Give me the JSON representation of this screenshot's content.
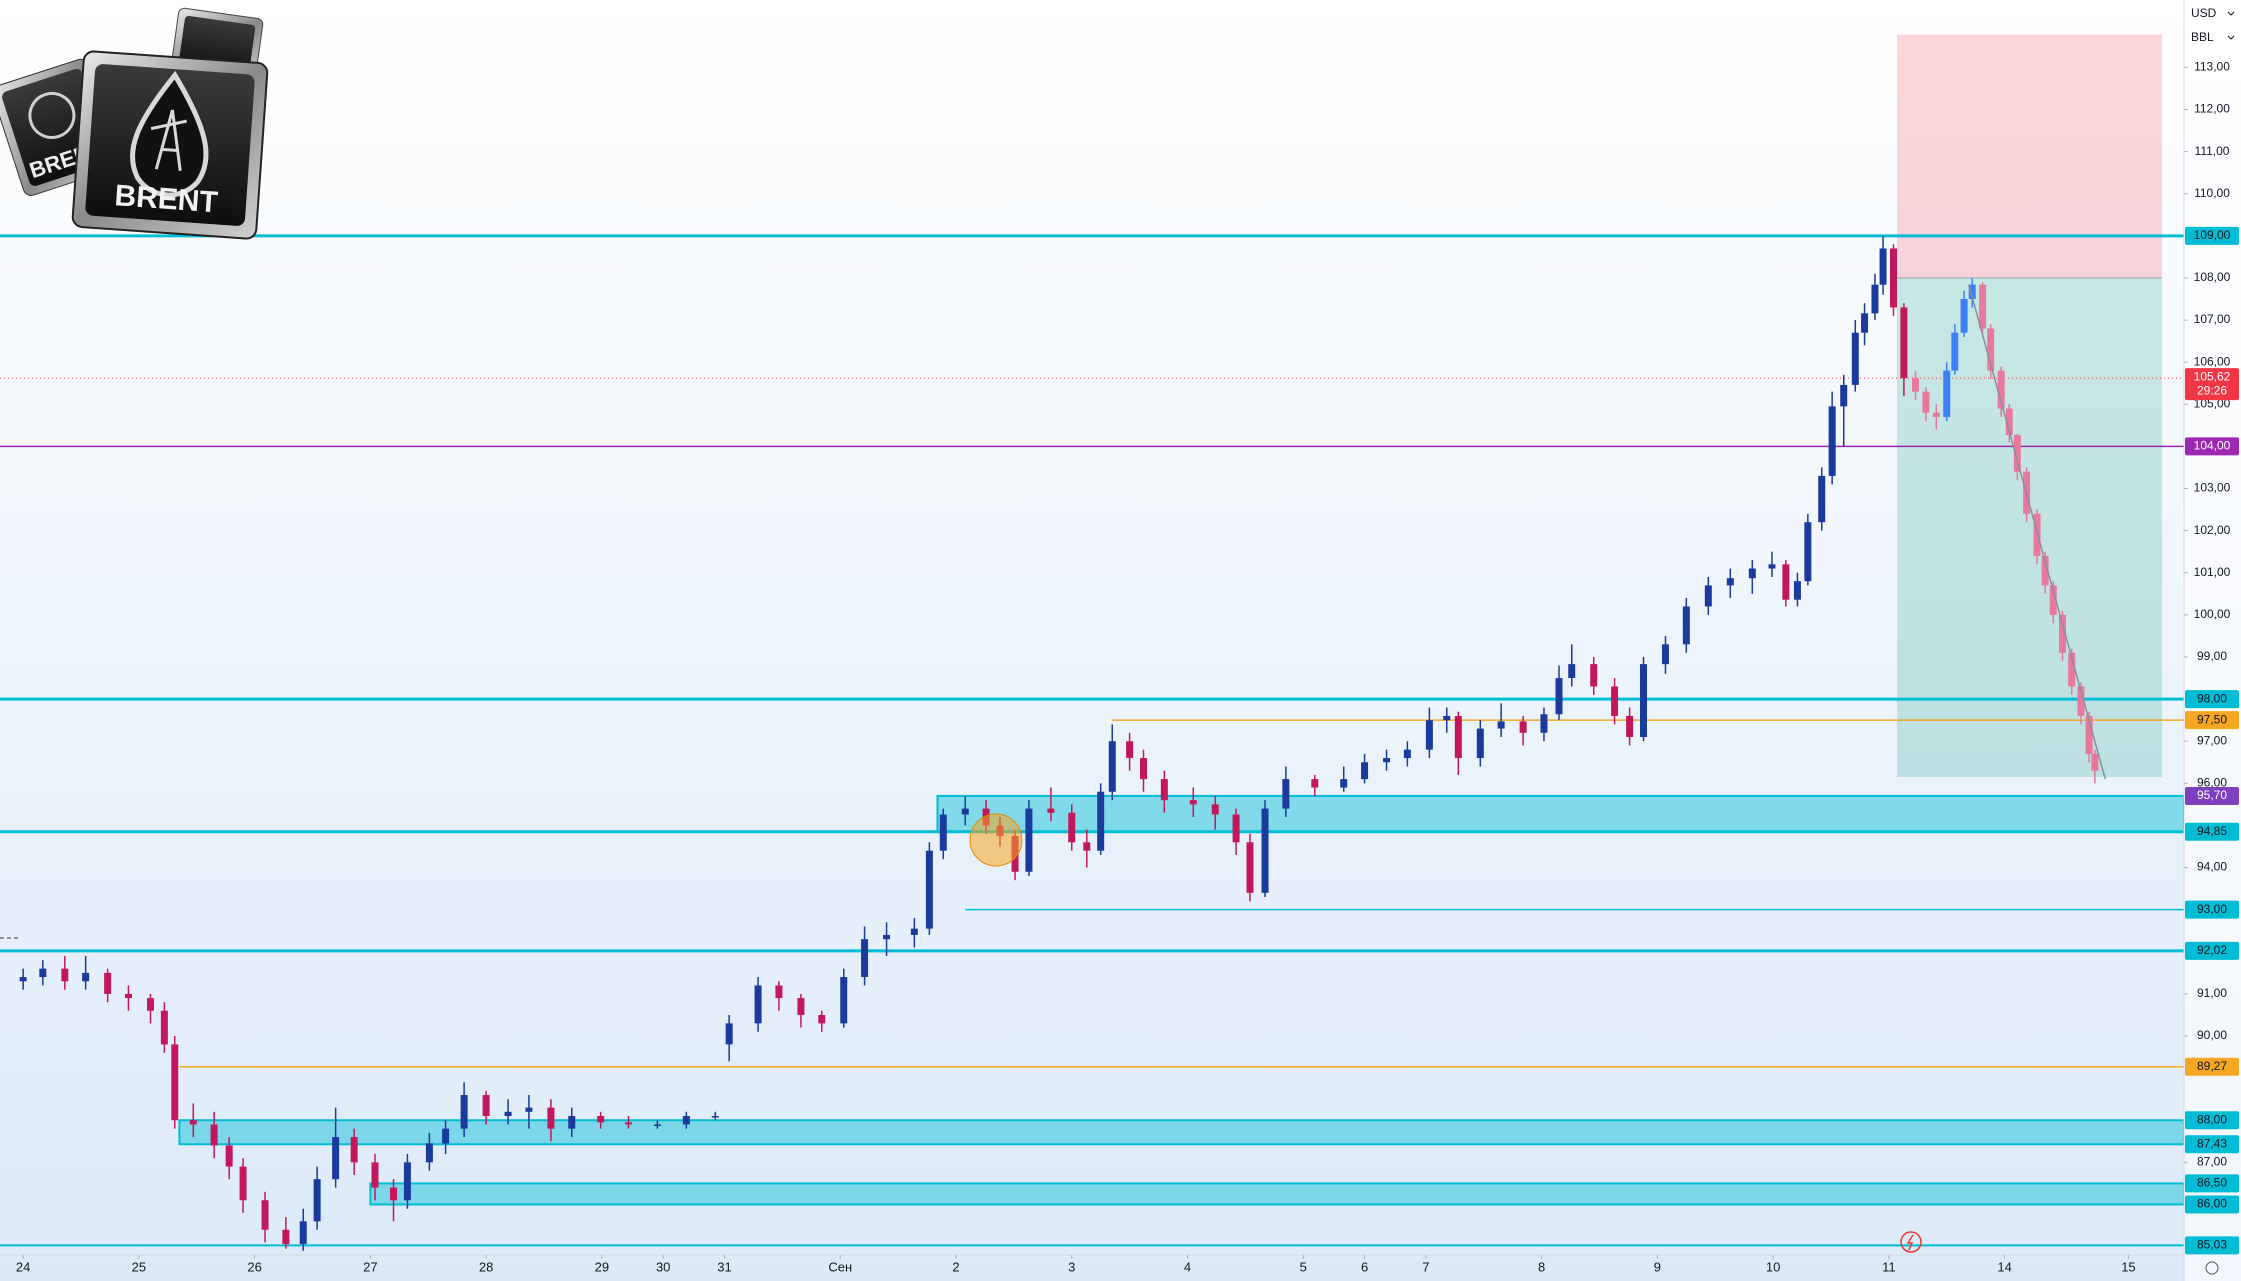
{
  "chart_data": {
    "type": "candlestick",
    "currency": "USD",
    "unit": "BBL",
    "logo_text": "BRENT",
    "xlim": [
      -0.2,
      18.67
    ],
    "ylim": [
      84.8,
      114.6
    ],
    "xticks": [
      {
        "value": 0,
        "label": "24"
      },
      {
        "value": 1,
        "label": "25"
      },
      {
        "value": 2,
        "label": "26"
      },
      {
        "value": 3,
        "label": "27"
      },
      {
        "value": 4,
        "label": "28"
      },
      {
        "value": 5,
        "label": "29"
      },
      {
        "value": 5.53,
        "label": "30"
      },
      {
        "value": 6.06,
        "label": "31"
      },
      {
        "value": 7.06,
        "label": "Сен"
      },
      {
        "value": 8.06,
        "label": "2"
      },
      {
        "value": 9.06,
        "label": "3"
      },
      {
        "value": 10.06,
        "label": "4"
      },
      {
        "value": 11.06,
        "label": "5"
      },
      {
        "value": 11.59,
        "label": "6"
      },
      {
        "value": 12.12,
        "label": "7"
      },
      {
        "value": 13.12,
        "label": "8"
      },
      {
        "value": 14.12,
        "label": "9"
      },
      {
        "value": 15.12,
        "label": "10"
      },
      {
        "value": 16.12,
        "label": "11"
      },
      {
        "value": 17.12,
        "label": "14"
      },
      {
        "value": 18.19,
        "label": "15"
      }
    ],
    "yticks": [
      {
        "value": 113,
        "label": "113,00"
      },
      {
        "value": 112,
        "label": "112,00"
      },
      {
        "value": 111,
        "label": "111,00"
      },
      {
        "value": 110,
        "label": "110,00"
      },
      {
        "value": 108,
        "label": "108,00"
      },
      {
        "value": 107,
        "label": "107,00"
      },
      {
        "value": 106,
        "label": "106,00"
      },
      {
        "value": 105,
        "label": "105,00"
      },
      {
        "value": 103,
        "label": "103,00"
      },
      {
        "value": 102,
        "label": "102,00"
      },
      {
        "value": 101,
        "label": "101,00"
      },
      {
        "value": 100,
        "label": "100,00"
      },
      {
        "value": 99,
        "label": "99,00"
      },
      {
        "value": 97,
        "label": "97,00"
      },
      {
        "value": 96,
        "label": "96,00"
      },
      {
        "value": 94,
        "label": "94,00"
      },
      {
        "value": 91,
        "label": "91,00"
      },
      {
        "value": 90,
        "label": "90,00"
      },
      {
        "value": 87,
        "label": "87,00"
      }
    ],
    "up_color": "#1a3a9c",
    "down_color": "#c2185b",
    "projection_up_color": "#3d7ff5",
    "projection_down_color": "#e8789e",
    "candles": {
      "x": [
        0,
        0.17,
        0.36,
        0.54,
        0.73,
        0.91,
        1.1,
        1.22,
        1.31,
        1.47,
        1.65,
        1.78,
        1.9,
        2.09,
        2.27,
        2.42,
        2.54,
        2.7,
        2.86,
        3.04,
        3.2,
        3.32,
        3.51,
        3.65,
        3.81,
        4.0,
        4.19,
        4.37,
        4.56,
        4.74,
        4.99,
        5.23,
        5.48,
        5.73,
        5.98,
        6.1,
        6.35,
        6.53,
        6.72,
        6.9,
        7.09,
        7.27,
        7.46,
        7.7,
        7.83,
        7.95,
        8.14,
        8.32,
        8.44,
        8.57,
        8.69,
        8.88,
        9.06,
        9.19,
        9.31,
        9.41,
        9.56,
        9.68,
        9.86,
        10.11,
        10.3,
        10.48,
        10.6,
        10.73,
        10.91,
        11.16,
        11.41,
        11.59,
        11.78,
        11.96,
        12.15,
        12.3,
        12.4,
        12.59,
        12.77,
        12.96,
        13.14,
        13.27,
        13.38,
        13.57,
        13.75,
        13.88,
        14.0,
        14.19,
        14.37,
        14.56,
        14.75,
        14.94,
        15.11,
        15.23,
        15.33,
        15.42,
        15.54,
        15.63,
        15.73,
        15.83,
        15.91,
        16.0,
        16.07,
        16.16,
        16.25
      ],
      "ohlc": [
        [
          91.3,
          91.6,
          91.1,
          91.4
        ],
        [
          91.4,
          91.8,
          91.2,
          91.6
        ],
        [
          91.6,
          91.9,
          91.1,
          91.3
        ],
        [
          91.3,
          91.9,
          91.1,
          91.5
        ],
        [
          91.5,
          91.6,
          90.8,
          91.0
        ],
        [
          91.0,
          91.2,
          90.6,
          90.9
        ],
        [
          90.9,
          91.0,
          90.3,
          90.6
        ],
        [
          90.6,
          90.8,
          89.6,
          89.8
        ],
        [
          89.8,
          90.0,
          87.8,
          88.0
        ],
        [
          88.0,
          88.4,
          87.6,
          87.9
        ],
        [
          87.9,
          88.2,
          87.1,
          87.4
        ],
        [
          87.4,
          87.6,
          86.6,
          86.9
        ],
        [
          86.9,
          87.1,
          85.8,
          86.1
        ],
        [
          86.1,
          86.3,
          85.1,
          85.4
        ],
        [
          85.4,
          85.7,
          84.95,
          85.06
        ],
        [
          85.06,
          85.9,
          84.9,
          85.6
        ],
        [
          85.6,
          86.9,
          85.4,
          86.6
        ],
        [
          86.6,
          88.3,
          86.4,
          87.6
        ],
        [
          87.6,
          87.8,
          86.7,
          87.0
        ],
        [
          87.0,
          87.2,
          86.1,
          86.4
        ],
        [
          86.4,
          86.6,
          85.6,
          86.1
        ],
        [
          86.1,
          87.2,
          85.9,
          87.0
        ],
        [
          87.0,
          87.7,
          86.8,
          87.45
        ],
        [
          87.45,
          88.0,
          87.2,
          87.8
        ],
        [
          87.8,
          88.9,
          87.6,
          88.6
        ],
        [
          88.6,
          88.7,
          87.9,
          88.1
        ],
        [
          88.1,
          88.5,
          87.9,
          88.2
        ],
        [
          88.2,
          88.6,
          87.8,
          88.3
        ],
        [
          88.3,
          88.5,
          87.5,
          87.8
        ],
        [
          87.8,
          88.3,
          87.6,
          88.1
        ],
        [
          88.1,
          88.2,
          87.8,
          87.95
        ],
        [
          87.95,
          88.1,
          87.8,
          87.9
        ],
        [
          87.9,
          88.0,
          87.8,
          87.9
        ],
        [
          87.9,
          88.2,
          87.8,
          88.1
        ],
        [
          88.1,
          88.2,
          88.0,
          88.1
        ],
        [
          89.8,
          90.5,
          89.4,
          90.3
        ],
        [
          90.3,
          91.4,
          90.1,
          91.2
        ],
        [
          91.2,
          91.3,
          90.6,
          90.9
        ],
        [
          90.9,
          91.0,
          90.2,
          90.5
        ],
        [
          90.5,
          90.6,
          90.1,
          90.3
        ],
        [
          90.3,
          91.6,
          90.2,
          91.4
        ],
        [
          91.4,
          92.6,
          91.2,
          92.3
        ],
        [
          92.3,
          92.7,
          91.9,
          92.4
        ],
        [
          92.4,
          92.8,
          92.1,
          92.55
        ],
        [
          92.55,
          94.6,
          92.4,
          94.4
        ],
        [
          94.4,
          95.4,
          94.2,
          95.26
        ],
        [
          95.26,
          95.7,
          95.0,
          95.4
        ],
        [
          95.4,
          95.6,
          94.8,
          95.0
        ],
        [
          95.0,
          95.2,
          94.5,
          94.75
        ],
        [
          94.75,
          94.9,
          93.7,
          93.9
        ],
        [
          93.9,
          95.6,
          93.8,
          95.4
        ],
        [
          95.4,
          95.9,
          95.1,
          95.3
        ],
        [
          95.3,
          95.5,
          94.4,
          94.6
        ],
        [
          94.6,
          94.9,
          94.0,
          94.4
        ],
        [
          94.4,
          96.0,
          94.3,
          95.8
        ],
        [
          95.8,
          97.4,
          95.6,
          97.0
        ],
        [
          97.0,
          97.2,
          96.3,
          96.6
        ],
        [
          96.6,
          96.8,
          95.8,
          96.1
        ],
        [
          96.1,
          96.3,
          95.3,
          95.6
        ],
        [
          95.6,
          95.9,
          95.2,
          95.5
        ],
        [
          95.5,
          95.7,
          94.9,
          95.26
        ],
        [
          95.26,
          95.4,
          94.3,
          94.6
        ],
        [
          94.6,
          94.8,
          93.2,
          93.4
        ],
        [
          93.4,
          95.6,
          93.3,
          95.4
        ],
        [
          95.4,
          96.4,
          95.2,
          96.1
        ],
        [
          96.1,
          96.2,
          95.7,
          95.9
        ],
        [
          95.9,
          96.4,
          95.8,
          96.1
        ],
        [
          96.1,
          96.7,
          96.0,
          96.5
        ],
        [
          96.5,
          96.8,
          96.3,
          96.6
        ],
        [
          96.6,
          97.0,
          96.4,
          96.8
        ],
        [
          96.8,
          97.8,
          96.6,
          97.5
        ],
        [
          97.5,
          97.8,
          97.2,
          97.6
        ],
        [
          97.6,
          97.7,
          96.2,
          96.6
        ],
        [
          96.6,
          97.5,
          96.4,
          97.3
        ],
        [
          97.3,
          97.9,
          97.1,
          97.47
        ],
        [
          97.47,
          97.6,
          96.9,
          97.2
        ],
        [
          97.2,
          97.8,
          97.0,
          97.64
        ],
        [
          97.64,
          98.8,
          97.5,
          98.5
        ],
        [
          98.5,
          99.3,
          98.3,
          98.83
        ],
        [
          98.83,
          99.0,
          98.1,
          98.3
        ],
        [
          98.3,
          98.5,
          97.4,
          97.6
        ],
        [
          97.6,
          97.8,
          96.9,
          97.1
        ],
        [
          97.1,
          99.0,
          97.0,
          98.83
        ],
        [
          98.83,
          99.5,
          98.6,
          99.3
        ],
        [
          99.3,
          100.4,
          99.1,
          100.2
        ],
        [
          100.2,
          100.9,
          100.0,
          100.7
        ],
        [
          100.7,
          101.1,
          100.4,
          100.87
        ],
        [
          100.87,
          101.3,
          100.5,
          101.1
        ],
        [
          101.1,
          101.5,
          100.9,
          101.2
        ],
        [
          101.2,
          101.3,
          100.2,
          100.36
        ],
        [
          100.36,
          101.0,
          100.2,
          100.8
        ],
        [
          100.8,
          102.4,
          100.7,
          102.2
        ],
        [
          102.2,
          103.5,
          102.0,
          103.3
        ],
        [
          103.3,
          105.3,
          103.1,
          104.95
        ],
        [
          104.95,
          105.7,
          104.0,
          105.46
        ],
        [
          105.46,
          107.0,
          105.3,
          106.7
        ],
        [
          106.7,
          107.4,
          106.4,
          107.16
        ],
        [
          107.16,
          108.1,
          107.0,
          107.84
        ],
        [
          107.84,
          109.0,
          107.6,
          108.7
        ],
        [
          108.7,
          108.8,
          107.1,
          107.3
        ],
        [
          107.3,
          107.4,
          105.2,
          105.62
        ]
      ]
    },
    "projection": {
      "x": [
        16.35,
        16.44,
        16.53,
        16.62,
        16.69,
        16.77,
        16.84,
        16.93,
        17.0,
        17.09,
        17.16,
        17.23,
        17.31,
        17.4,
        17.47,
        17.54,
        17.62,
        17.7,
        17.78,
        17.85,
        17.9
      ],
      "ohlc": [
        [
          105.62,
          105.8,
          105.1,
          105.3
        ],
        [
          105.3,
          105.4,
          104.6,
          104.8
        ],
        [
          104.8,
          105.0,
          104.4,
          104.7
        ],
        [
          104.7,
          106.0,
          104.6,
          105.8
        ],
        [
          105.8,
          106.9,
          105.7,
          106.7
        ],
        [
          106.7,
          107.7,
          106.6,
          107.5
        ],
        [
          107.5,
          108.0,
          107.3,
          107.84
        ],
        [
          107.84,
          107.9,
          106.6,
          106.8
        ],
        [
          106.8,
          106.9,
          105.6,
          105.8
        ],
        [
          105.8,
          105.9,
          104.7,
          104.9
        ],
        [
          104.9,
          105.0,
          104.1,
          104.27
        ],
        [
          104.27,
          104.3,
          103.2,
          103.4
        ],
        [
          103.4,
          103.5,
          102.2,
          102.4
        ],
        [
          102.4,
          102.5,
          101.2,
          101.4
        ],
        [
          101.4,
          101.5,
          100.5,
          100.7
        ],
        [
          100.7,
          100.8,
          99.8,
          100.0
        ],
        [
          100.0,
          100.1,
          98.9,
          99.1
        ],
        [
          99.1,
          99.2,
          98.1,
          98.3
        ],
        [
          98.3,
          98.4,
          97.4,
          97.6
        ],
        [
          97.6,
          97.7,
          96.5,
          96.7
        ],
        [
          96.7,
          96.8,
          96.0,
          96.3
        ]
      ]
    },
    "position": {
      "x0": 16.19,
      "x1": 18.48,
      "entry": 108,
      "stop": 113.78,
      "target": 96.15,
      "stop_color": "rgba(242,54,69,0.2)",
      "target_color": "rgba(8,153,129,0.2)"
    },
    "trendline": {
      "x": [
        16.81,
        17.99
      ],
      "y": [
        107.84,
        96.1
      ],
      "color": "#8a8f99"
    },
    "levels": [
      {
        "value": 109,
        "label": "109,00",
        "color": "#00bcd4",
        "width": 3
      },
      {
        "value": 104,
        "label": "104,00",
        "color": "#9c27b0",
        "width": 1.5
      },
      {
        "value": 98,
        "label": "98,00",
        "color": "#00bcd4",
        "width": 3
      },
      {
        "value": 97.5,
        "label": "97,50",
        "color": "#f5a623",
        "width": 1.5,
        "x0": 9.41
      },
      {
        "value": 94.85,
        "label": "94,85",
        "color": "#00bcd4",
        "width": 3
      },
      {
        "value": 93,
        "label": "93,00",
        "color": "#00bcd4",
        "width": 1.5,
        "x0": 8.14
      },
      {
        "value": 92.02,
        "label": "92,02",
        "color": "#00bcd4",
        "width": 3
      },
      {
        "value": 89.27,
        "label": "89,27",
        "color": "#f5a623",
        "width": 1.5,
        "x0": 1.35
      },
      {
        "value": 85.03,
        "label": "85,03",
        "color": "#00bcd4",
        "width": 2
      }
    ],
    "zones": [
      {
        "top": 95.7,
        "top_label": "95,70",
        "top_color": "#7e3fbf",
        "bottom": 94.85,
        "x0": 7.9,
        "color": "#00bcd4"
      },
      {
        "top": 88,
        "top_label": "88,00",
        "bottom": 87.43,
        "bottom_label": "87,43",
        "x0": 1.35,
        "color": "#00bcd4"
      },
      {
        "top": 86.5,
        "top_label": "86,50",
        "bottom": 86,
        "bottom_label": "86,00",
        "x0": 3.0,
        "color": "#00bcd4"
      }
    ],
    "current_price": {
      "value": 105.62,
      "label": "105,62",
      "timer": "29:26",
      "color": "#f23645"
    }
  }
}
